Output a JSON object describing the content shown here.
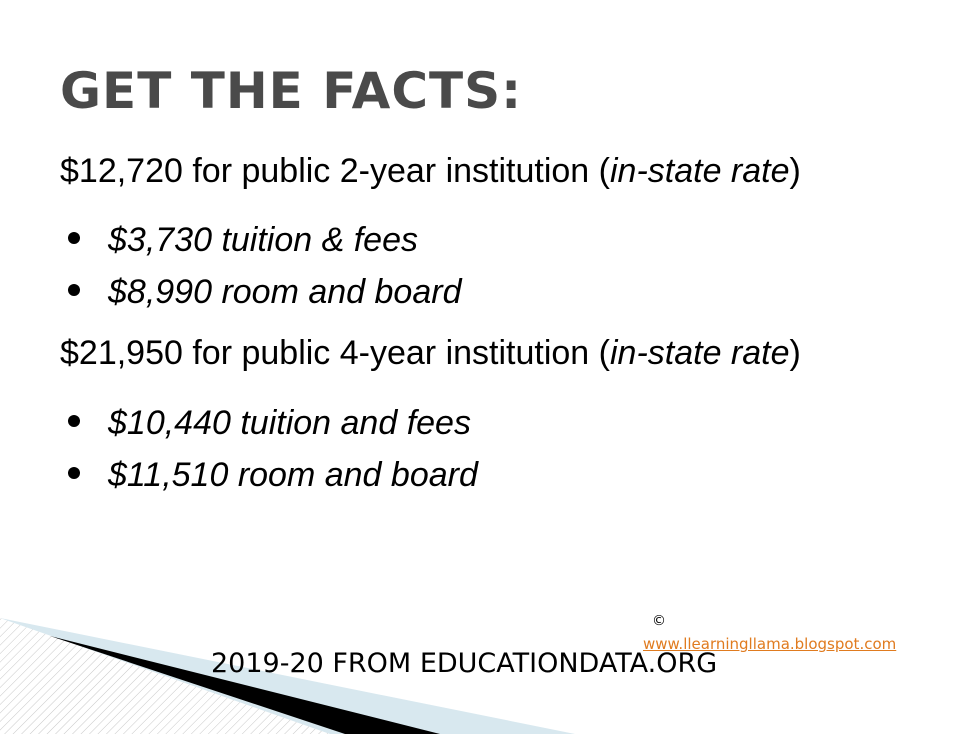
{
  "title": "GET THE FACTS:",
  "sections": [
    {
      "heading": "$12,720 for public 2-year institution (",
      "heading_emphasis": "in-state rate",
      "heading_end": ")",
      "bullets": [
        "$3,730 tuition & fees",
        "$8,990 room and board"
      ]
    },
    {
      "heading": "$21,950 for public 4-year institution (",
      "heading_emphasis": "in-state rate",
      "heading_end": ")",
      "bullets": [
        "$10,440 tuition and fees",
        "$11,510 room and board"
      ]
    }
  ],
  "footer": {
    "source": "2019-20 FROM EDUCATIONDATA.ORG",
    "copyright": "©",
    "link": "www.llearningllama.blogspot.com"
  }
}
